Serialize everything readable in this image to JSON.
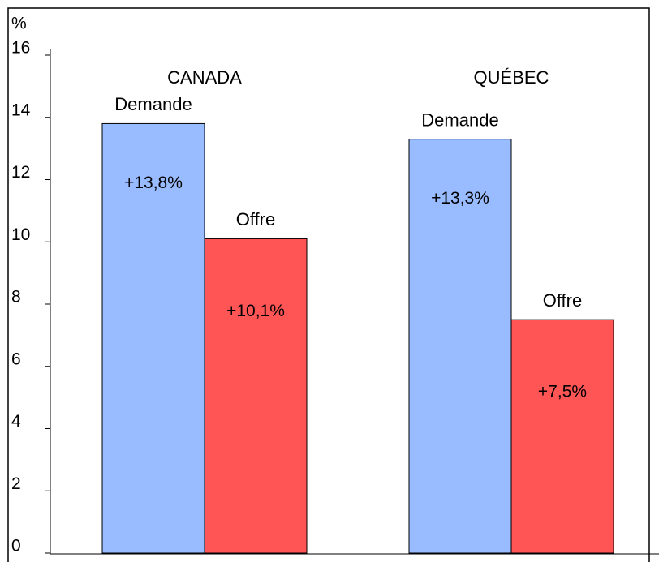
{
  "chart_data": {
    "type": "bar",
    "y_label": "%",
    "categories": [
      "CANADA",
      "QUÉBEC"
    ],
    "series": [
      {
        "name": "Demande",
        "color": "#99bbff",
        "values": [
          13.8,
          13.3
        ],
        "value_labels": [
          "+13,8%",
          "+13,3%"
        ]
      },
      {
        "name": "Offre",
        "color": "#ff5555",
        "values": [
          10.1,
          7.5
        ],
        "value_labels": [
          "+10,1%",
          "+7,5%"
        ]
      }
    ],
    "ylim": [
      0,
      16
    ],
    "yticks": [
      0,
      2,
      4,
      6,
      8,
      10,
      12,
      14,
      16
    ],
    "grid": false
  }
}
